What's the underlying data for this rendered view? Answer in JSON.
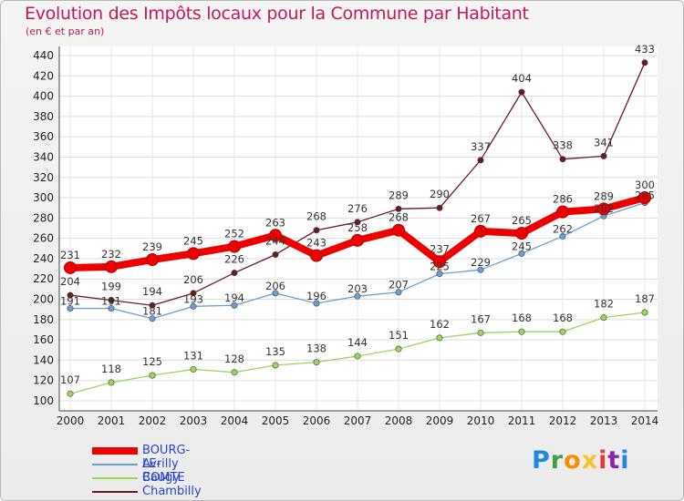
{
  "chart_data": {
    "type": "line",
    "title": "Evolution des Impôts locaux pour la Commune par Habitant",
    "subtitle": "(en € et par an)",
    "x": [
      "2000",
      "2001",
      "2002",
      "2003",
      "2004",
      "2005",
      "2006",
      "2007",
      "2008",
      "2009",
      "2010",
      "2011",
      "2012",
      "2013",
      "2014"
    ],
    "ylim": [
      100,
      440
    ],
    "yticks": [
      100,
      120,
      140,
      160,
      180,
      200,
      220,
      240,
      260,
      280,
      300,
      320,
      340,
      360,
      380,
      400,
      420,
      440
    ],
    "grid": true,
    "legend_position": "bottom-left",
    "series": [
      {
        "name": "BOURG-LE-COMTE",
        "color": "#ee0000",
        "values": [
          231,
          232,
          239,
          245,
          252,
          263,
          243,
          258,
          268,
          237,
          267,
          265,
          286,
          289,
          300
        ]
      },
      {
        "name": "Avrilly",
        "color": "#6b9fd4",
        "values": [
          191,
          191,
          181,
          193,
          194,
          206,
          196,
          203,
          207,
          225,
          229,
          245,
          262,
          282,
          295
        ]
      },
      {
        "name": "Baugy",
        "color": "#9bd65c",
        "values": [
          107,
          118,
          125,
          131,
          128,
          135,
          138,
          144,
          151,
          162,
          167,
          168,
          168,
          182,
          187
        ]
      },
      {
        "name": "Chambilly",
        "color": "#6b1a24",
        "values": [
          204,
          199,
          194,
          206,
          226,
          244,
          268,
          276,
          289,
          290,
          337,
          404,
          338,
          341,
          433
        ]
      }
    ]
  },
  "logo": {
    "letters": [
      {
        "t": "P",
        "c": "#1e88e5"
      },
      {
        "t": "r",
        "c": "#43a047"
      },
      {
        "t": "o",
        "c": "#fb8c00"
      },
      {
        "t": "x",
        "c": "#fbc02d"
      },
      {
        "t": "i",
        "c": "#e53935"
      },
      {
        "t": "t",
        "c": "#8e24aa"
      },
      {
        "t": "i",
        "c": "#1e88e5"
      }
    ]
  }
}
